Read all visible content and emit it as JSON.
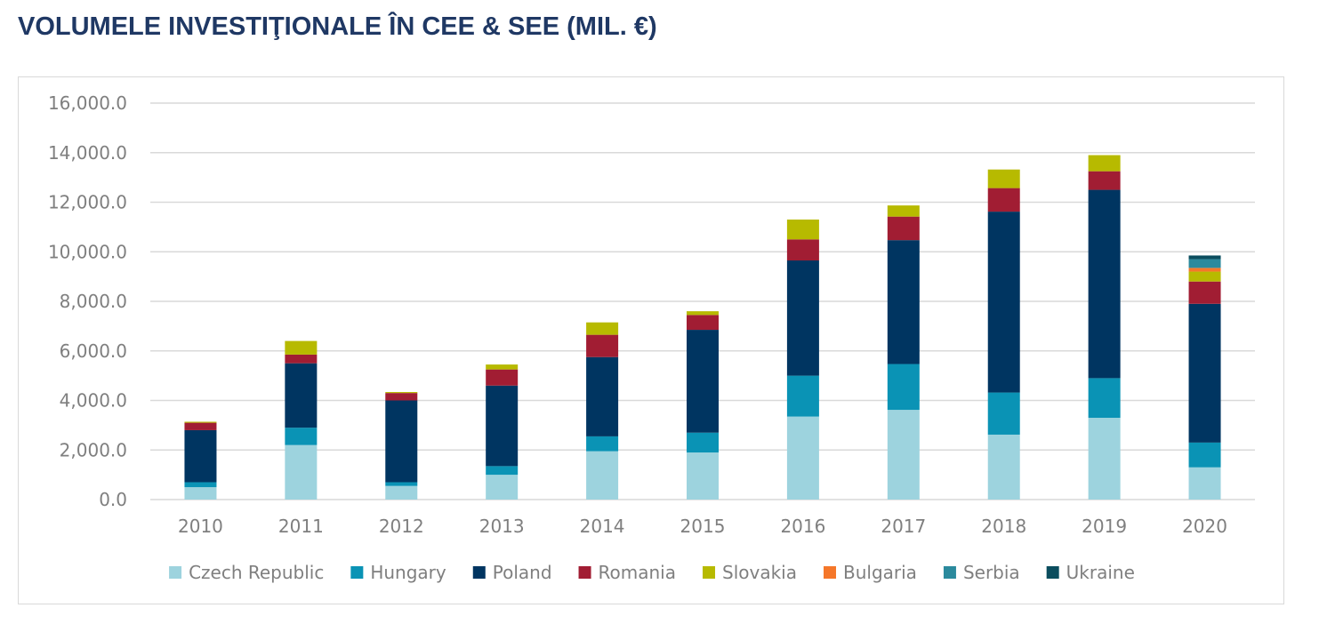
{
  "title": "VOLUMELE INVESTIŢIONALE ÎN CEE & SEE (MIL. €)",
  "chart_data": {
    "type": "bar",
    "stacked": true,
    "title": "VOLUMELE INVESTIŢIONALE ÎN CEE & SEE (MIL. €)",
    "xlabel": "",
    "ylabel": "",
    "ylim": [
      0,
      16000
    ],
    "yticks": [
      "0.0",
      "2,000.0",
      "4,000.0",
      "6,000.0",
      "8,000.0",
      "10,000.0",
      "12,000.0",
      "14,000.0",
      "16,000.0"
    ],
    "ytick_values": [
      0,
      2000,
      4000,
      6000,
      8000,
      10000,
      12000,
      14000,
      16000
    ],
    "grid": true,
    "legend_position": "bottom",
    "categories": [
      "2010",
      "2011",
      "2012",
      "2013",
      "2014",
      "2015",
      "2016",
      "2017",
      "2018",
      "2019",
      "2020"
    ],
    "series": [
      {
        "name": "Czech Republic",
        "color": "#9dd3de",
        "values": [
          500,
          2200,
          550,
          1000,
          1950,
          1900,
          3350,
          3620,
          2620,
          3300,
          1300
        ]
      },
      {
        "name": "Hungary",
        "color": "#0a93b5",
        "values": [
          200,
          700,
          150,
          350,
          600,
          800,
          1650,
          1850,
          1700,
          1600,
          1000
        ]
      },
      {
        "name": "Poland",
        "color": "#003561",
        "values": [
          2100,
          2600,
          3300,
          3250,
          3200,
          4150,
          4650,
          5000,
          7300,
          7600,
          5600
        ]
      },
      {
        "name": "Romania",
        "color": "#a11d33",
        "values": [
          300,
          350,
          300,
          650,
          900,
          600,
          850,
          950,
          950,
          750,
          900
        ]
      },
      {
        "name": "Slovakia",
        "color": "#b7ba00",
        "values": [
          40,
          550,
          40,
          200,
          500,
          150,
          800,
          450,
          750,
          650,
          400
        ]
      },
      {
        "name": "Bulgaria",
        "color": "#f5772a",
        "values": [
          0,
          0,
          0,
          0,
          0,
          0,
          0,
          0,
          0,
          0,
          150
        ]
      },
      {
        "name": "Serbia",
        "color": "#2b8a9d",
        "values": [
          0,
          0,
          0,
          0,
          0,
          0,
          0,
          0,
          0,
          0,
          350
        ]
      },
      {
        "name": "Ukraine",
        "color": "#0b4d5e",
        "values": [
          0,
          0,
          0,
          0,
          0,
          0,
          0,
          0,
          0,
          0,
          150
        ]
      }
    ]
  }
}
